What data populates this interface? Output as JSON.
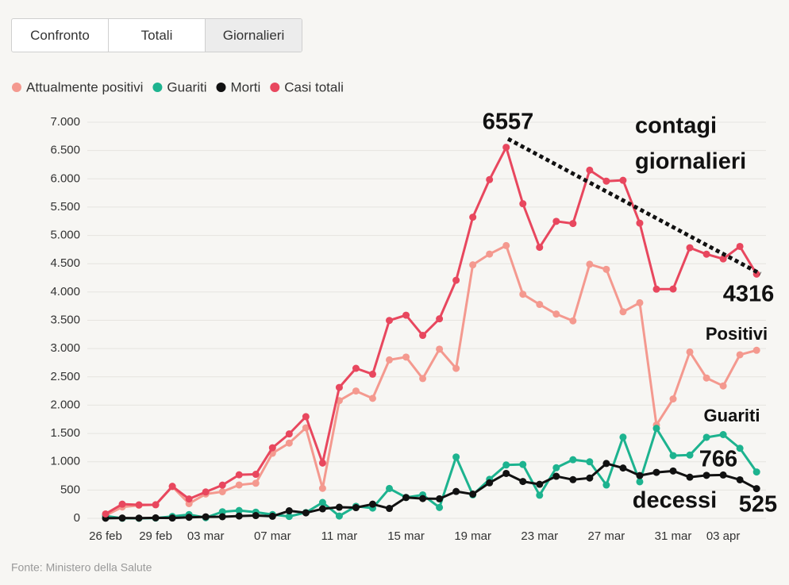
{
  "ui": {
    "tabs": [
      "Confronto",
      "Totali",
      "Giornalieri"
    ],
    "active_tab": 2
  },
  "chart_data": {
    "type": "line",
    "categories": [
      "26 feb",
      null,
      null,
      "29 feb",
      null,
      null,
      "03 mar",
      null,
      null,
      null,
      "07 mar",
      null,
      null,
      null,
      "11 mar",
      null,
      null,
      null,
      "15 mar",
      null,
      null,
      null,
      "19 mar",
      null,
      null,
      null,
      "23 mar",
      null,
      null,
      null,
      "27 mar",
      null,
      null,
      null,
      "31 mar",
      null,
      null,
      "03 apr",
      null,
      null
    ],
    "series": [
      {
        "name": "Attualmente positivi",
        "color": "#f4998f",
        "values": [
          50,
          200,
          230,
          240,
          560,
          260,
          430,
          470,
          590,
          620,
          1150,
          1330,
          1600,
          530,
          2080,
          2250,
          2120,
          2800,
          2850,
          2470,
          2990,
          2650,
          4480,
          4670,
          4820,
          3960,
          3780,
          3610,
          3490,
          4490,
          4400,
          3650,
          3810,
          1650,
          2110,
          2940,
          2480,
          2340,
          2890,
          2970
        ]
      },
      {
        "name": "Guariti",
        "color": "#1db38f",
        "values": [
          42,
          1,
          0,
          4,
          33,
          66,
          11,
          116,
          138,
          109,
          66,
          33,
          102,
          280,
          41,
          213,
          181,
          527,
          369,
          414,
          192,
          1084,
          415,
          689,
          943,
          952,
          408,
          894,
          1036,
          999,
          589,
          1434,
          646,
          1590,
          1109,
          1118,
          1431,
          1480,
          1238,
          819
        ]
      },
      {
        "name": "Morti",
        "color": "#111111",
        "values": [
          2,
          5,
          4,
          8,
          5,
          18,
          27,
          28,
          41,
          49,
          36,
          133,
          97,
          168,
          196,
          189,
          250,
          175,
          368,
          349,
          345,
          475,
          427,
          627,
          793,
          651,
          601,
          743,
          683,
          712,
          969,
          889,
          756,
          812,
          837,
          727,
          760,
          766,
          681,
          525
        ]
      },
      {
        "name": "Casi totali",
        "color": "#e8475e",
        "values": [
          78,
          250,
          238,
          240,
          566,
          342,
          466,
          587,
          769,
          778,
          1247,
          1492,
          1797,
          977,
          2313,
          2651,
          2547,
          3497,
          3590,
          3233,
          3526,
          4207,
          5322,
          5986,
          6557,
          5560,
          4789,
          5249,
          5210,
          6153,
          5959,
          5974,
          5217,
          4050,
          4053,
          4782,
          4668,
          4585,
          4805,
          4316
        ]
      }
    ],
    "ylim": [
      0,
      7000
    ],
    "yticks": [
      0,
      500,
      {
        "value": 1000,
        "label": "1.000"
      },
      {
        "value": 1500,
        "label": "1.500"
      },
      {
        "value": 2000,
        "label": "2.000"
      },
      {
        "value": 2500,
        "label": "2.500"
      },
      {
        "value": 3000,
        "label": "3.000"
      },
      {
        "value": 3500,
        "label": "3.500"
      },
      {
        "value": 4000,
        "label": "4.000"
      },
      {
        "value": 4500,
        "label": "4.500"
      },
      {
        "value": 5000,
        "label": "5.000"
      },
      {
        "value": 5500,
        "label": "5.500"
      },
      {
        "value": 6000,
        "label": "6.000"
      },
      {
        "value": 6500,
        "label": "6.500"
      },
      {
        "value": 7000,
        "label": "7.000"
      }
    ],
    "grid": true,
    "legend": "top-left",
    "annotations": [
      "6557",
      "contagi",
      "giornalieri",
      "4316",
      "Positivi",
      "Guariti",
      "766",
      "decessi",
      "525"
    ],
    "source": "Fonte: Ministero della Salute"
  }
}
